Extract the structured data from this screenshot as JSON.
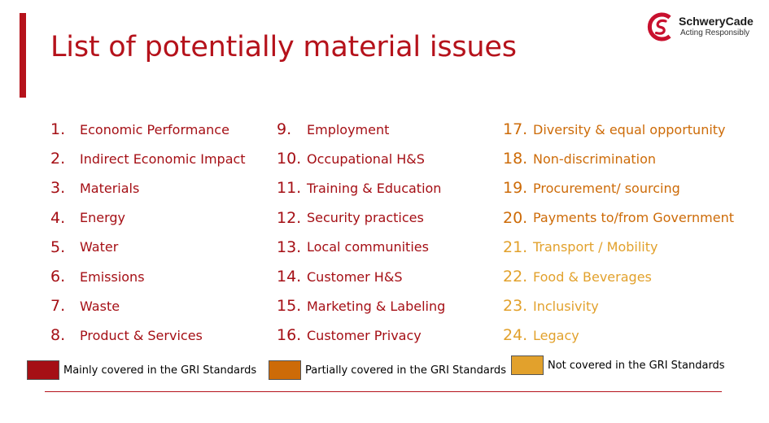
{
  "slide": {
    "title": "List of potentially material issues",
    "accent_color": "#b5121b"
  },
  "logo": {
    "name": "SchweryCade",
    "tagline": "Acting Responsibly",
    "icon": "schwerycade-logo-icon",
    "color": "#c8102e"
  },
  "colors": {
    "mainly": "#a50f15",
    "partially": "#cd6b08",
    "not": "#e2a12c"
  },
  "columns": [
    {
      "items": [
        {
          "number": "1.",
          "label": "Economic Performance",
          "category": "mainly"
        },
        {
          "number": "2.",
          "label": "Indirect Economic Impact",
          "category": "mainly"
        },
        {
          "number": "3.",
          "label": "Materials",
          "category": "mainly"
        },
        {
          "number": "4.",
          "label": "Energy",
          "category": "mainly"
        },
        {
          "number": "5.",
          "label": "Water",
          "category": "mainly"
        },
        {
          "number": "6.",
          "label": "Emissions",
          "category": "mainly"
        },
        {
          "number": "7.",
          "label": "Waste",
          "category": "mainly"
        },
        {
          "number": "8.",
          "label": "Product & Services",
          "category": "mainly"
        }
      ]
    },
    {
      "items": [
        {
          "number": "9.",
          "label": "Employment",
          "category": "mainly"
        },
        {
          "number": "10.",
          "label": "Occupational H&S",
          "category": "mainly"
        },
        {
          "number": "11.",
          "label": "Training & Education",
          "category": "mainly"
        },
        {
          "number": "12.",
          "label": "Security practices",
          "category": "mainly"
        },
        {
          "number": "13.",
          "label": "Local communities",
          "category": "mainly"
        },
        {
          "number": "14.",
          "label": "Customer H&S",
          "category": "mainly"
        },
        {
          "number": "15.",
          "label": "Marketing & Labeling",
          "category": "mainly"
        },
        {
          "number": "16.",
          "label": "Customer Privacy",
          "category": "mainly"
        }
      ]
    },
    {
      "items": [
        {
          "number": "17.",
          "label": "Diversity & equal opportunity",
          "category": "partially"
        },
        {
          "number": "18.",
          "label": "Non-discrimination",
          "category": "partially"
        },
        {
          "number": "19.",
          "label": "Procurement/ sourcing",
          "category": "partially"
        },
        {
          "number": "20.",
          "label": "Payments to/from Government",
          "category": "partially"
        },
        {
          "number": "21.",
          "label": "Transport / Mobility",
          "category": "not"
        },
        {
          "number": "22.",
          "label": "Food & Beverages",
          "category": "not"
        },
        {
          "number": "23.",
          "label": "Inclusivity",
          "category": "not"
        },
        {
          "number": "24.",
          "label": "Legacy",
          "category": "not"
        }
      ]
    }
  ],
  "legend": {
    "mainly": "Mainly covered in the GRI Standards",
    "partially": "Partially covered in the GRI Standards",
    "not": "Not covered in the GRI Standards"
  }
}
